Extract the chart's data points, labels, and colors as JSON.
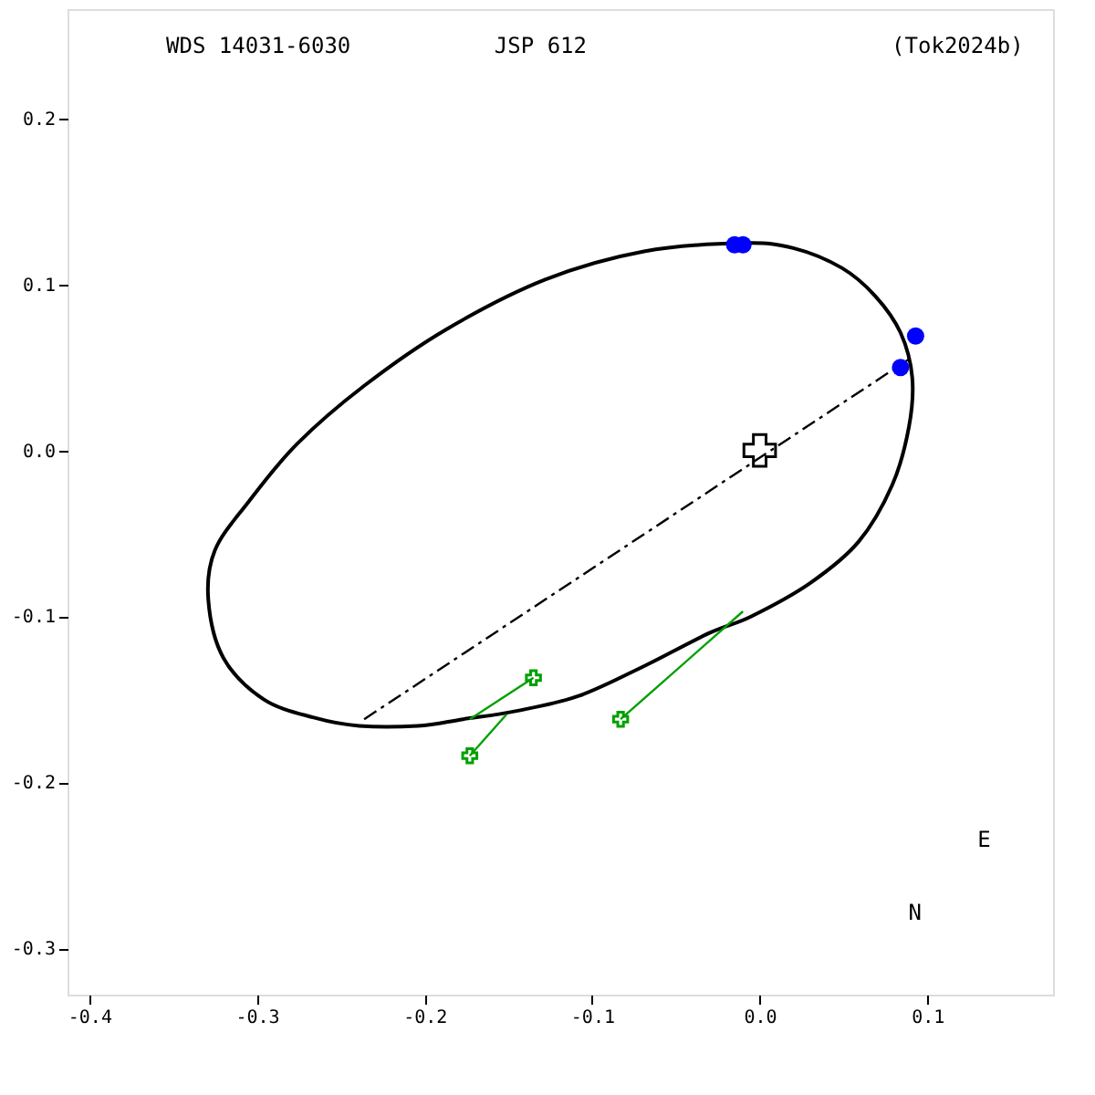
{
  "chart_data": {
    "type": "line",
    "title": "JSP 612",
    "annotations": [
      "WDS 14031-6030",
      "(Tok2024b)",
      "N",
      "E"
    ],
    "series": [
      {
        "color": "#000000",
        "marker": "none",
        "line_style": "dashed",
        "x": [
          -0.236,
          0.089
        ],
        "values": [
          -0.162,
          0.055
        ]
      },
      {
        "color": "#00a000",
        "marker": "none",
        "line_style": "solid",
        "x": [
          -0.173,
          -0.135
        ],
        "values": [
          -0.162,
          -0.137
        ]
      },
      {
        "color": "#00a000",
        "marker": "none",
        "line_style": "solid",
        "x": [
          -0.173,
          -0.151
        ],
        "values": [
          -0.184,
          -0.159
        ]
      },
      {
        "color": "#00a000",
        "marker": "none",
        "line_style": "solid",
        "x": [
          -0.083,
          -0.01
        ],
        "values": [
          -0.162,
          -0.097
        ]
      },
      {
        "type": "scatter",
        "color": "#00a000",
        "marker": "cross",
        "x": [
          -0.135,
          -0.173,
          -0.083
        ],
        "values": [
          -0.137,
          -0.184,
          -0.162
        ]
      },
      {
        "type": "scatter",
        "color": "#0000ff",
        "marker": "circle",
        "x": [
          -0.015,
          -0.01,
          0.093,
          0.084
        ],
        "values": [
          0.124,
          0.124,
          0.069,
          0.05
        ]
      },
      {
        "type": "scatter",
        "color": "#000000",
        "marker": "cross",
        "x": [
          0.0
        ],
        "values": [
          0.0
        ]
      }
    ],
    "xlim": [
      -0.413,
      0.175
    ],
    "ylim": [
      -0.328,
      0.266
    ],
    "xticks": [
      -0.4,
      -0.3,
      -0.2,
      -0.1,
      {
        "value": 0,
        "label": "0.0"
      },
      0.1
    ],
    "yticks": [
      -0.3,
      -0.2,
      -0.1,
      {
        "value": 0,
        "label": "0.0"
      },
      0.1,
      0.2
    ],
    "grid": false
  }
}
